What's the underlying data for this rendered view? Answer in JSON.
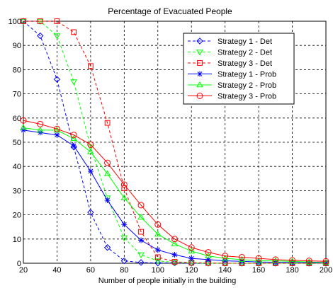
{
  "chart_data": {
    "type": "line",
    "title": "Percentage of Evacuated People",
    "xlabel": "Number of people initially in the building",
    "ylabel": "",
    "xlim": [
      20,
      200
    ],
    "ylim": [
      0,
      100
    ],
    "xticks": [
      20,
      40,
      60,
      80,
      100,
      120,
      140,
      160,
      180,
      200
    ],
    "yticks": [
      0,
      10,
      20,
      30,
      40,
      50,
      60,
      70,
      80,
      90,
      100
    ],
    "grid": true,
    "grid_style": "dashed",
    "legend_position": "top-right",
    "series": [
      {
        "name": "Strategy 1 - Det",
        "color": "#0000ff",
        "marker": "diamond",
        "line": "dashed",
        "x": [
          20,
          30,
          40,
          50,
          60,
          70,
          80,
          90,
          100,
          110,
          120,
          130,
          140,
          150,
          160,
          170,
          180,
          190,
          200
        ],
        "y": [
          100,
          94,
          76,
          48,
          21,
          6.5,
          1,
          0.3,
          0.1,
          0.1,
          0,
          0,
          0,
          0,
          0,
          0,
          0,
          0,
          0
        ]
      },
      {
        "name": "Strategy 2 - Det",
        "color": "#00ff00",
        "marker": "triangle-down",
        "line": "dashed",
        "x": [
          20,
          30,
          40,
          50,
          60,
          70,
          80,
          90,
          100,
          110,
          120,
          130,
          140,
          150,
          160,
          170,
          180,
          190,
          200
        ],
        "y": [
          100,
          100,
          94,
          75,
          48,
          27,
          10.5,
          3.5,
          1,
          0.3,
          0.1,
          0,
          0,
          0,
          0,
          0,
          0,
          0,
          0
        ]
      },
      {
        "name": "Strategy 3 - Det",
        "color": "#ff0000",
        "marker": "square",
        "line": "dashed",
        "x": [
          20,
          30,
          40,
          50,
          60,
          70,
          80,
          90,
          100,
          110,
          120,
          130,
          140,
          150,
          160,
          170,
          180,
          190,
          200
        ],
        "y": [
          100,
          100,
          100,
          95.5,
          81.5,
          58,
          31,
          13,
          2.5,
          0.6,
          0.2,
          0.1,
          0,
          0,
          0,
          0,
          0,
          0,
          0
        ]
      },
      {
        "name": "Strategy 1 - Prob",
        "color": "#0000ff",
        "marker": "star",
        "line": "solid",
        "x": [
          20,
          30,
          40,
          50,
          60,
          70,
          80,
          90,
          100,
          110,
          120,
          130,
          140,
          150,
          160,
          170,
          180,
          190,
          200
        ],
        "y": [
          55,
          54,
          53,
          48.5,
          38,
          26,
          16,
          9.5,
          5.5,
          3.5,
          2,
          1.5,
          1,
          0.8,
          0.5,
          0.4,
          0.3,
          0.2,
          0.1
        ]
      },
      {
        "name": "Strategy 2 - Prob",
        "color": "#00ff00",
        "marker": "triangle-up",
        "line": "solid",
        "x": [
          20,
          30,
          40,
          50,
          60,
          70,
          80,
          90,
          100,
          110,
          120,
          130,
          140,
          150,
          160,
          170,
          180,
          190,
          200
        ],
        "y": [
          56,
          55,
          55,
          51.5,
          46,
          37,
          27,
          19,
          12,
          8,
          5,
          3,
          2,
          1.5,
          1,
          1,
          0.8,
          0.5,
          0.3
        ]
      },
      {
        "name": "Strategy 3 - Prob",
        "color": "#ff0000",
        "marker": "circle",
        "line": "solid",
        "x": [
          20,
          30,
          40,
          50,
          60,
          70,
          80,
          90,
          100,
          110,
          120,
          130,
          140,
          150,
          160,
          170,
          180,
          190,
          200
        ],
        "y": [
          59,
          57.5,
          55.5,
          53,
          49,
          41.5,
          32.5,
          24,
          16,
          10,
          6.5,
          4.5,
          3,
          2.5,
          2,
          1.5,
          1.2,
          1,
          0.8
        ]
      }
    ]
  }
}
